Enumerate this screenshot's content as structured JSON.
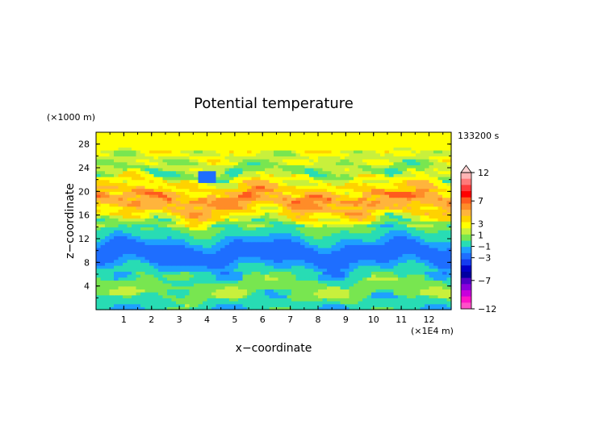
{
  "chart_data": {
    "type": "heatmap",
    "title": "Potential temperature",
    "xlabel": "x−coordinate",
    "ylabel": "z−coordinate",
    "x_unit": "(×1E4 m)",
    "y_unit": "(×1000 m)",
    "time_label": "133200 s",
    "xlim": [
      0,
      12.8
    ],
    "ylim": [
      0,
      30
    ],
    "x_ticks": [
      "1",
      "2",
      "3",
      "4",
      "5",
      "6",
      "7",
      "8",
      "9",
      "10",
      "11",
      "12"
    ],
    "y_ticks": [
      "4",
      "8",
      "12",
      "16",
      "20",
      "24",
      "28"
    ],
    "colorbar": {
      "tick_labels": [
        "12",
        "7",
        "3",
        "1",
        "−1",
        "−3",
        "−7",
        "−12"
      ],
      "levels": [
        {
          "lo": 10,
          "hi": 12,
          "color": "#ffb4b4"
        },
        {
          "lo": 8,
          "hi": 10,
          "color": "#ff7a7a"
        },
        {
          "lo": 7,
          "hi": 8,
          "color": "#ff3c3c"
        },
        {
          "lo": 6,
          "hi": 7,
          "color": "#ff0000"
        },
        {
          "lo": 5,
          "hi": 6,
          "color": "#ff5a1e"
        },
        {
          "lo": 4,
          "hi": 5,
          "color": "#ff8c28"
        },
        {
          "lo": 3,
          "hi": 4,
          "color": "#ffb43c"
        },
        {
          "lo": 2,
          "hi": 3,
          "color": "#ffd200"
        },
        {
          "lo": 1,
          "hi": 2,
          "color": "#ffff00"
        },
        {
          "lo": 0,
          "hi": 1,
          "color": "#c8f03c"
        },
        {
          "lo": -1,
          "hi": 0,
          "color": "#78e650"
        },
        {
          "lo": -2,
          "hi": -1,
          "color": "#28dcb4"
        },
        {
          "lo": -3,
          "hi": -2,
          "color": "#1ea0ff"
        },
        {
          "lo": -4,
          "hi": -3,
          "color": "#1e6eff"
        },
        {
          "lo": -5,
          "hi": -4,
          "color": "#143cf0"
        },
        {
          "lo": -6,
          "hi": -5,
          "color": "#0000c8"
        },
        {
          "lo": -7,
          "hi": -6,
          "color": "#0000a0"
        },
        {
          "lo": -8,
          "hi": -7,
          "color": "#5000c8"
        },
        {
          "lo": -9,
          "hi": -8,
          "color": "#8c00dc"
        },
        {
          "lo": -10,
          "hi": -9,
          "color": "#c800dc"
        },
        {
          "lo": -11,
          "hi": -10,
          "color": "#ff14c8"
        },
        {
          "lo": -12,
          "hi": -11,
          "color": "#ff50c8"
        }
      ]
    },
    "bands": [
      {
        "z_lo": 0,
        "z_hi": 2,
        "value": -1.6
      },
      {
        "z_lo": 2,
        "z_hi": 5,
        "value": -0.4
      },
      {
        "z_lo": 5,
        "z_hi": 7,
        "value": -1.5
      },
      {
        "z_lo": 7,
        "z_hi": 8,
        "value": -2.5
      },
      {
        "z_lo": 8,
        "z_hi": 11,
        "value": -3.5
      },
      {
        "z_lo": 11,
        "z_hi": 12,
        "value": -2.6
      },
      {
        "z_lo": 12,
        "z_hi": 13.5,
        "value": -1.5
      },
      {
        "z_lo": 13.5,
        "z_hi": 15,
        "value": -0.5
      },
      {
        "z_lo": 15,
        "z_hi": 16,
        "value": 1.5
      },
      {
        "z_lo": 16,
        "z_hi": 17,
        "value": 2.5
      },
      {
        "z_lo": 17,
        "z_hi": 18.5,
        "value": 3.5
      },
      {
        "z_lo": 18.5,
        "z_hi": 19.5,
        "value": 4.5
      },
      {
        "z_lo": 19.5,
        "z_hi": 21,
        "value": 2.5
      },
      {
        "z_lo": 21,
        "z_hi": 22.5,
        "value": 1.5
      },
      {
        "z_lo": 22.5,
        "z_hi": 24,
        "value": -0.5
      },
      {
        "z_lo": 24,
        "z_hi": 26,
        "value": 0.5
      },
      {
        "z_lo": 26,
        "z_hi": 30,
        "value": 1.2
      }
    ]
  }
}
